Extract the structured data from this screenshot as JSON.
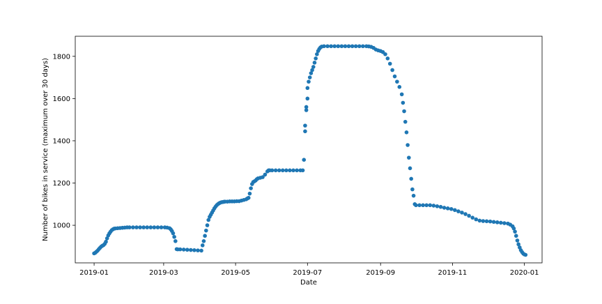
{
  "chart_data": {
    "type": "scatter",
    "title": "",
    "xlabel": "Date",
    "ylabel": "Number of bikes in service (maximum over 30 days)",
    "x_axis": {
      "kind": "date",
      "range": [
        "2018-12-16",
        "2020-01-16"
      ],
      "ticks": [
        "2019-01",
        "2019-03",
        "2019-05",
        "2019-07",
        "2019-09",
        "2019-11",
        "2020-01"
      ]
    },
    "y_axis": {
      "range": [
        822,
        1895
      ],
      "ticks": [
        1000,
        1200,
        1400,
        1600,
        1800
      ]
    },
    "grid": false,
    "legend": false,
    "marker_color": "#1f77b4",
    "series": [
      {
        "x": [
          "2019-01-01",
          "2019-01-02",
          "2019-01-03",
          "2019-01-04",
          "2019-01-05",
          "2019-01-06",
          "2019-01-07",
          "2019-01-08",
          "2019-01-09",
          "2019-01-10",
          "2019-01-11",
          "2019-01-12",
          "2019-01-13",
          "2019-01-14",
          "2019-01-15",
          "2019-01-16",
          "2019-01-17",
          "2019-01-18",
          "2019-01-19",
          "2019-01-21",
          "2019-01-23",
          "2019-01-25",
          "2019-01-27",
          "2019-01-29",
          "2019-01-31",
          "2019-02-03",
          "2019-02-06",
          "2019-02-09",
          "2019-02-12",
          "2019-02-15",
          "2019-02-18",
          "2019-02-21",
          "2019-02-24",
          "2019-02-27",
          "2019-03-02",
          "2019-03-04",
          "2019-03-06",
          "2019-03-07",
          "2019-03-08",
          "2019-03-09",
          "2019-03-10",
          "2019-03-11",
          "2019-03-12",
          "2019-03-13",
          "2019-03-15",
          "2019-03-18",
          "2019-03-21",
          "2019-03-24",
          "2019-03-27",
          "2019-03-30",
          "2019-04-02",
          "2019-04-03",
          "2019-04-04",
          "2019-04-05",
          "2019-04-06",
          "2019-04-07",
          "2019-04-08",
          "2019-04-09",
          "2019-04-10",
          "2019-04-11",
          "2019-04-12",
          "2019-04-13",
          "2019-04-14",
          "2019-04-15",
          "2019-04-16",
          "2019-04-17",
          "2019-04-18",
          "2019-04-19",
          "2019-04-20",
          "2019-04-21",
          "2019-04-22",
          "2019-04-24",
          "2019-04-26",
          "2019-04-28",
          "2019-04-30",
          "2019-05-02",
          "2019-05-04",
          "2019-05-06",
          "2019-05-08",
          "2019-05-10",
          "2019-05-11",
          "2019-05-12",
          "2019-05-13",
          "2019-05-14",
          "2019-05-15",
          "2019-05-16",
          "2019-05-17",
          "2019-05-18",
          "2019-05-19",
          "2019-05-20",
          "2019-05-22",
          "2019-05-24",
          "2019-05-26",
          "2019-05-28",
          "2019-05-29",
          "2019-05-30",
          "2019-06-01",
          "2019-06-04",
          "2019-06-07",
          "2019-06-10",
          "2019-06-13",
          "2019-06-16",
          "2019-06-19",
          "2019-06-22",
          "2019-06-25",
          "2019-06-27",
          "2019-06-28",
          "2019-06-29",
          "2019-06-29",
          "2019-06-30",
          "2019-06-30",
          "2019-07-01",
          "2019-07-01",
          "2019-07-02",
          "2019-07-03",
          "2019-07-04",
          "2019-07-05",
          "2019-07-06",
          "2019-07-07",
          "2019-07-08",
          "2019-07-09",
          "2019-07-10",
          "2019-07-11",
          "2019-07-12",
          "2019-07-13",
          "2019-07-15",
          "2019-07-18",
          "2019-07-21",
          "2019-07-24",
          "2019-07-27",
          "2019-07-30",
          "2019-08-02",
          "2019-08-05",
          "2019-08-08",
          "2019-08-11",
          "2019-08-14",
          "2019-08-17",
          "2019-08-20",
          "2019-08-22",
          "2019-08-24",
          "2019-08-26",
          "2019-08-28",
          "2019-08-30",
          "2019-09-01",
          "2019-09-03",
          "2019-09-05",
          "2019-09-07",
          "2019-09-09",
          "2019-09-11",
          "2019-09-13",
          "2019-09-15",
          "2019-09-17",
          "2019-09-19",
          "2019-09-20",
          "2019-09-21",
          "2019-09-22",
          "2019-09-23",
          "2019-09-24",
          "2019-09-25",
          "2019-09-26",
          "2019-09-27",
          "2019-09-28",
          "2019-09-29",
          "2019-09-30",
          "2019-10-01",
          "2019-10-04",
          "2019-10-07",
          "2019-10-10",
          "2019-10-13",
          "2019-10-16",
          "2019-10-19",
          "2019-10-22",
          "2019-10-25",
          "2019-10-28",
          "2019-10-31",
          "2019-11-03",
          "2019-11-06",
          "2019-11-09",
          "2019-11-12",
          "2019-11-15",
          "2019-11-18",
          "2019-11-21",
          "2019-11-24",
          "2019-11-27",
          "2019-11-30",
          "2019-12-03",
          "2019-12-06",
          "2019-12-09",
          "2019-12-12",
          "2019-12-15",
          "2019-12-18",
          "2019-12-20",
          "2019-12-22",
          "2019-12-23",
          "2019-12-24",
          "2019-12-25",
          "2019-12-26",
          "2019-12-27",
          "2019-12-28",
          "2019-12-29",
          "2019-12-30",
          "2019-12-31",
          "2020-01-01",
          "2020-01-02"
        ],
        "y": [
          867,
          870,
          875,
          880,
          887,
          893,
          899,
          903,
          906,
          912,
          922,
          938,
          952,
          962,
          970,
          977,
          981,
          984,
          985,
          986,
          987,
          988,
          989,
          990,
          990,
          990,
          990,
          990,
          990,
          990,
          990,
          990,
          990,
          990,
          990,
          989,
          986,
          981,
          973,
          962,
          945,
          925,
          887,
          886,
          886,
          885,
          884,
          883,
          882,
          881,
          880,
          905,
          925,
          950,
          975,
          1000,
          1025,
          1040,
          1050,
          1060,
          1070,
          1080,
          1088,
          1095,
          1100,
          1104,
          1107,
          1109,
          1110,
          1111,
          1112,
          1112,
          1113,
          1113,
          1113,
          1114,
          1114,
          1117,
          1120,
          1123,
          1127,
          1130,
          1150,
          1175,
          1195,
          1205,
          1208,
          1212,
          1218,
          1222,
          1225,
          1228,
          1240,
          1255,
          1260,
          1260,
          1260,
          1260,
          1260,
          1260,
          1260,
          1260,
          1260,
          1260,
          1260,
          1260,
          1310,
          1445,
          1472,
          1545,
          1560,
          1600,
          1650,
          1680,
          1700,
          1720,
          1735,
          1750,
          1770,
          1790,
          1810,
          1825,
          1835,
          1842,
          1846,
          1848,
          1848,
          1848,
          1848,
          1848,
          1848,
          1848,
          1848,
          1848,
          1848,
          1848,
          1848,
          1848,
          1847,
          1845,
          1840,
          1832,
          1828,
          1825,
          1820,
          1810,
          1790,
          1765,
          1735,
          1705,
          1680,
          1655,
          1620,
          1580,
          1540,
          1490,
          1440,
          1380,
          1320,
          1270,
          1220,
          1170,
          1140,
          1100,
          1095,
          1095,
          1095,
          1095,
          1095,
          1093,
          1090,
          1087,
          1083,
          1080,
          1077,
          1072,
          1066,
          1060,
          1053,
          1045,
          1036,
          1028,
          1022,
          1020,
          1019,
          1018,
          1016,
          1014,
          1012,
          1010,
          1008,
          1003,
          995,
          985,
          970,
          950,
          928,
          910,
          895,
          882,
          873,
          866,
          862,
          860
        ]
      }
    ]
  }
}
